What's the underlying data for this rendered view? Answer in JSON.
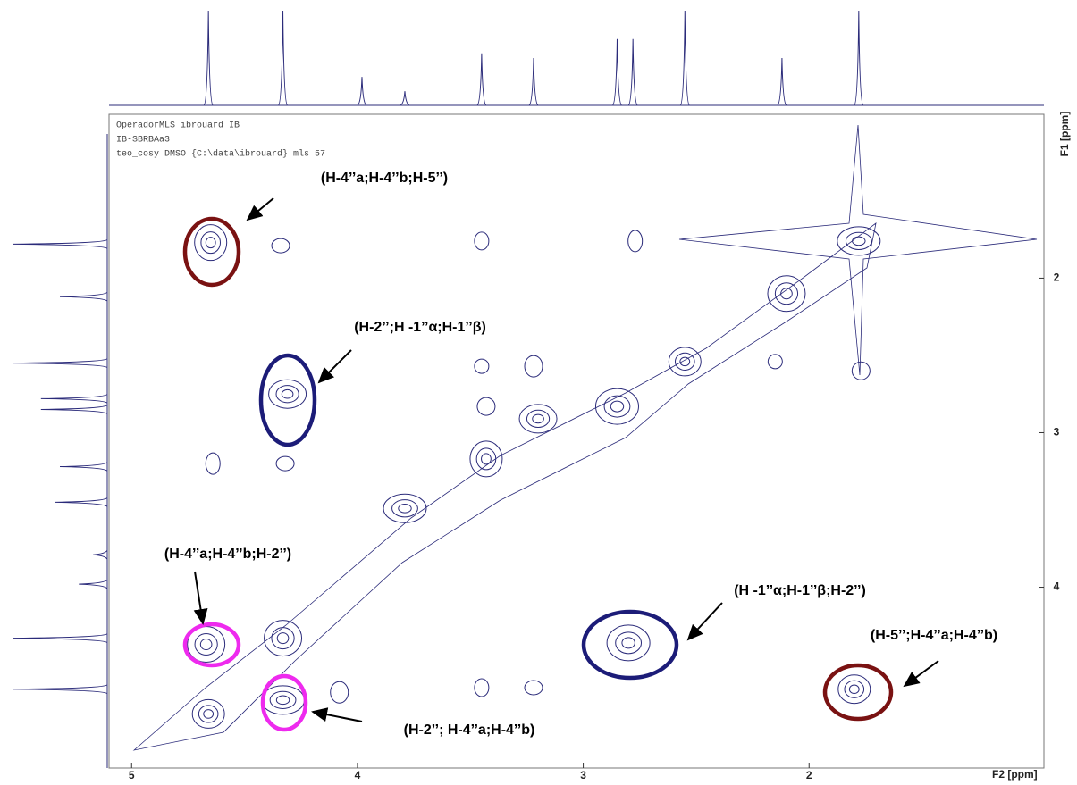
{
  "chart_data": {
    "type": "contour",
    "header": [
      "OperadorMLS ibrouard IB",
      "IB-SBRBAa3",
      "teo_cosy DMSO {C:\\data\\ibrouard} mls 57"
    ],
    "x_label": "F2 [ppm]",
    "y_label": "F1 [ppm]",
    "xlim": [
      5.1,
      0.96
    ],
    "ylim": [
      0.94,
      5.17
    ],
    "xticks": [
      5,
      4,
      3,
      2
    ],
    "yticks": [
      2,
      3,
      4
    ],
    "color": "#2b2b7a",
    "peaks": {
      "x": [
        4.66,
        4.33,
        3.79,
        3.43,
        3.2,
        2.85,
        2.55,
        2.1,
        1.78,
        4.65,
        4.31,
        2.8,
        1.8,
        4.67,
        4.33,
        4.34,
        3.45,
        3.22,
        3.45,
        3.43,
        2.77,
        3.22,
        3.45,
        4.08,
        2.15,
        1.77,
        4.64,
        4.32
      ],
      "y": [
        4.82,
        4.33,
        3.49,
        3.17,
        2.91,
        2.83,
        2.54,
        2.1,
        1.76,
        1.77,
        2.75,
        4.36,
        4.66,
        4.37,
        4.73,
        1.79,
        1.76,
        2.57,
        2.57,
        2.83,
        1.76,
        4.65,
        4.65,
        4.68,
        2.54,
        2.6,
        3.2,
        3.2
      ]
    },
    "projection": {
      "shifts": [
        4.66,
        4.33,
        3.98,
        3.79,
        3.45,
        3.22,
        2.85,
        2.78,
        2.55,
        2.12,
        1.78
      ],
      "intensities": [
        100,
        100,
        30,
        15,
        55,
        50,
        70,
        70,
        100,
        50,
        100
      ]
    },
    "annotations": [
      {
        "text": "(H-4’’a;H-4’’b;H-5’’)",
        "color": "#7a1212"
      },
      {
        "text": "(H-2’’;H -1’’α;H-1’’β)",
        "color": "#1c1c78"
      },
      {
        "text": "(H-4’’a;H-4’’b;H-2’’)",
        "color": "#ee2aee"
      },
      {
        "text": "(H-2’’; H-4’’a;H-4’’b)",
        "color": "#ee2aee"
      },
      {
        "text": "(H -1’’α;H-1’’β;H-2’’)",
        "color": "#1c1c78"
      },
      {
        "text": "(H-5’’;H-4’’a;H-4’’b)",
        "color": "#7a1212"
      }
    ]
  }
}
